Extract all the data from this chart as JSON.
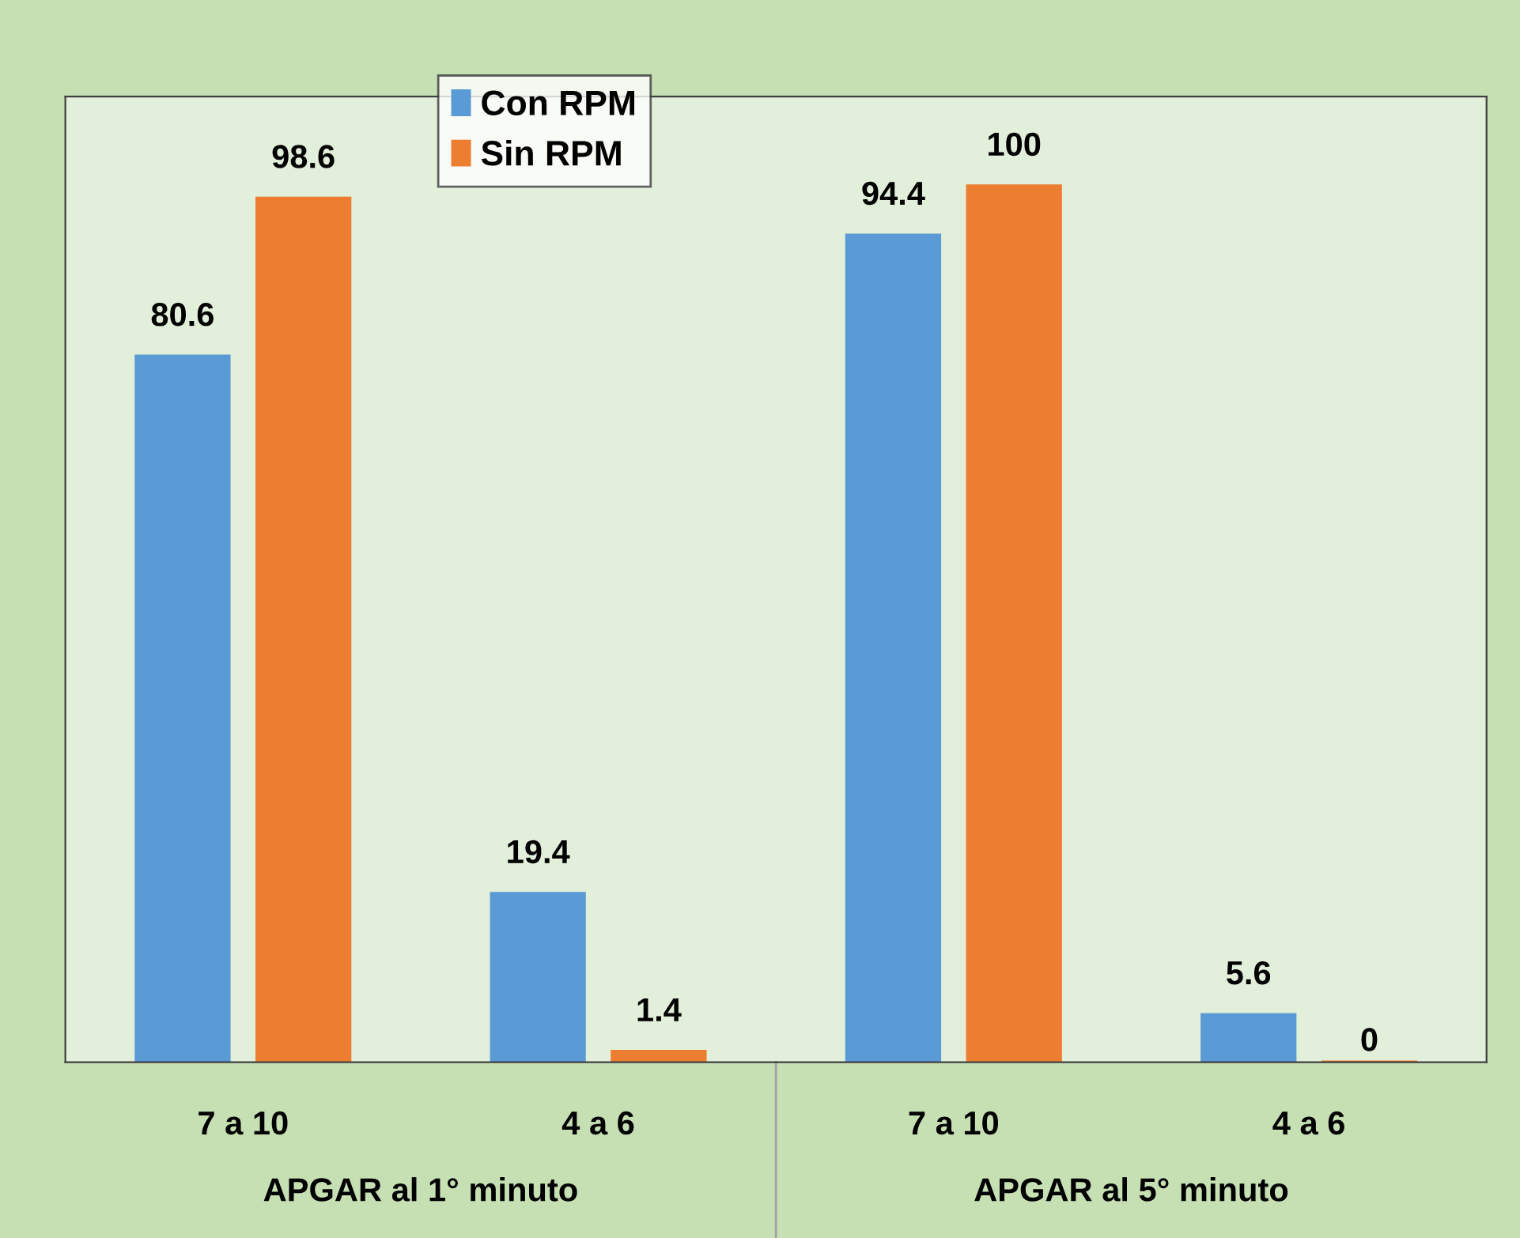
{
  "chart_data": {
    "type": "bar",
    "categories": [
      "7 a 10",
      "4 a 6",
      "7 a 10",
      "4 a 6"
    ],
    "series": [
      {
        "name": "Con RPM",
        "color": "#5b9bd5",
        "values": [
          80.6,
          19.4,
          94.4,
          5.6
        ]
      },
      {
        "name": "Sin RPM",
        "color": "#ed7d31",
        "values": [
          98.6,
          1.4,
          100,
          0
        ]
      }
    ],
    "annotations": [
      "APGAR al 1° minuto",
      "APGAR al 5° minuto"
    ],
    "data_labels": true,
    "legend": "top left",
    "grid": false
  }
}
